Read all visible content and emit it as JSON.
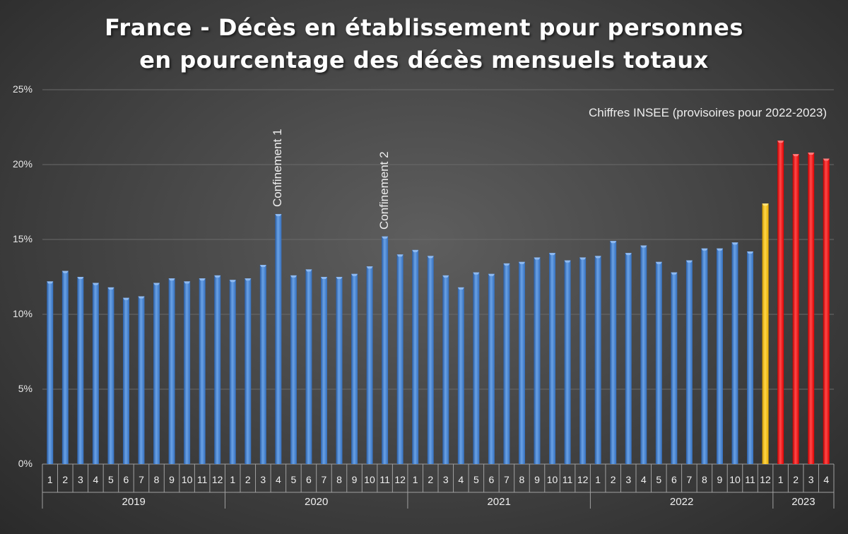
{
  "chart_data": {
    "type": "bar",
    "title": "France - Décès en établissement pour personnes",
    "subtitle": "en pourcentage des décès mensuels totaux",
    "note": "Chiffres INSEE (provisoires pour 2022-2023)",
    "ylim": [
      0,
      25
    ],
    "yticks": [
      "0%",
      "5%",
      "10%",
      "15%",
      "20%",
      "25%"
    ],
    "ytick_values": [
      0,
      5,
      10,
      15,
      20,
      25
    ],
    "grid": true,
    "years": [
      {
        "label": "2019",
        "months": [
          "1",
          "2",
          "3",
          "4",
          "5",
          "6",
          "7",
          "8",
          "9",
          "10",
          "11",
          "12"
        ]
      },
      {
        "label": "2020",
        "months": [
          "1",
          "2",
          "3",
          "4",
          "5",
          "6",
          "7",
          "8",
          "9",
          "10",
          "11",
          "12"
        ]
      },
      {
        "label": "2021",
        "months": [
          "1",
          "2",
          "3",
          "4",
          "5",
          "6",
          "7",
          "8",
          "9",
          "10",
          "11",
          "12"
        ]
      },
      {
        "label": "2022",
        "months": [
          "1",
          "2",
          "3",
          "4",
          "5",
          "6",
          "7",
          "8",
          "9",
          "10",
          "11",
          "12"
        ]
      },
      {
        "label": "2023",
        "months": [
          "1",
          "2",
          "3",
          "4"
        ]
      }
    ],
    "values": [
      12.2,
      12.9,
      12.5,
      12.1,
      11.8,
      11.1,
      11.2,
      12.1,
      12.4,
      12.2,
      12.4,
      12.6,
      12.3,
      12.4,
      13.3,
      16.7,
      12.6,
      13.0,
      12.5,
      12.5,
      12.7,
      13.2,
      15.2,
      14.0,
      14.3,
      13.9,
      12.6,
      11.8,
      12.8,
      12.7,
      13.4,
      13.5,
      13.8,
      14.1,
      13.6,
      13.8,
      13.9,
      14.9,
      14.1,
      14.6,
      13.5,
      12.8,
      13.6,
      14.4,
      14.4,
      14.8,
      14.2,
      17.4,
      21.6,
      20.7,
      20.8,
      20.4
    ],
    "bar_colors": {
      "default": "#3f7fcf",
      "dec_2022": "#ffc000",
      "2023": "#ff0000"
    },
    "annotations": [
      {
        "text": "Confinement 1",
        "index": 15
      },
      {
        "text": "Confinement 2",
        "index": 22
      }
    ]
  }
}
